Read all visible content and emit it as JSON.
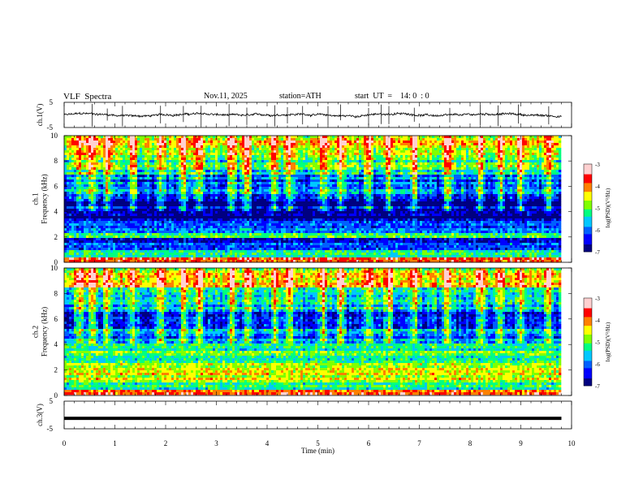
{
  "header": {
    "title": "VLF  Spectra",
    "date": "Nov.11, 2025",
    "station": "station=ATH",
    "start": "start  UT  =    14: 0  : 0"
  },
  "chart_data": [
    {
      "type": "line",
      "name": "ch1_waveform",
      "ylabel": "ch.1(V)",
      "ylim": [
        -5,
        5
      ],
      "yticks": [
        "5",
        "-5"
      ],
      "xlim": [
        0,
        10
      ],
      "x_end": 9.8,
      "baseline": 0.0,
      "noise_amplitude": 0.7,
      "spike_times_min": [
        0.55,
        0.85,
        1.15,
        1.9,
        2.35,
        2.7,
        3.25,
        3.6,
        4.15,
        4.4,
        4.7,
        5.2,
        5.45,
        6.0,
        6.25,
        6.4,
        6.9,
        7.6,
        8.2,
        8.55,
        8.95,
        9.55
      ]
    },
    {
      "type": "heatmap",
      "name": "ch1_spectrogram",
      "ylabel": "ch.1\nFrequency (kHz)",
      "yticks": [
        "0",
        "2",
        "4",
        "6",
        "8",
        "10"
      ],
      "ylim_khz": [
        0,
        10
      ],
      "xlim": [
        0,
        10
      ],
      "x_end": 9.8,
      "colorbar": {
        "label": "log(PSD)(V²/Hz)",
        "ticks": [
          "-3",
          "-4",
          "-5",
          "-6",
          "-7"
        ],
        "range": [
          -7,
          -3
        ]
      },
      "bands_khz": [
        [
          0.0,
          0.3,
          -4.0
        ],
        [
          0.3,
          1.0,
          -5.2
        ],
        [
          1.0,
          2.0,
          -6.2
        ],
        [
          2.0,
          2.4,
          -5.0
        ],
        [
          2.4,
          3.2,
          -6.0
        ],
        [
          3.2,
          5.4,
          -6.7
        ],
        [
          5.4,
          7.0,
          -6.1
        ],
        [
          7.0,
          8.5,
          -5.3
        ],
        [
          8.5,
          10.0,
          -4.5
        ]
      ],
      "burst_times_min": [
        0.3,
        0.55,
        0.85,
        1.35,
        1.9,
        2.35,
        2.65,
        3.3,
        3.6,
        4.15,
        4.45,
        5.1,
        5.45,
        6.0,
        6.4,
        6.9,
        7.55,
        8.2,
        8.6,
        9.0,
        9.55
      ]
    },
    {
      "type": "heatmap",
      "name": "ch2_spectrogram",
      "ylabel": "ch.2\nFrequency (kHz)",
      "yticks": [
        "0",
        "2",
        "4",
        "6",
        "8",
        "10"
      ],
      "ylim_khz": [
        0,
        10
      ],
      "xlim": [
        0,
        10
      ],
      "x_end": 9.8,
      "colorbar": {
        "label": "log(PSD)(V²/Hz)",
        "ticks": [
          "-3",
          "-4",
          "-5",
          "-6",
          "-7"
        ],
        "range": [
          -7,
          -3
        ]
      },
      "bands_khz": [
        [
          0.0,
          0.3,
          -4.0
        ],
        [
          0.3,
          1.2,
          -5.0
        ],
        [
          1.2,
          2.5,
          -4.7
        ],
        [
          2.5,
          4.0,
          -5.1
        ],
        [
          4.0,
          5.2,
          -6.0
        ],
        [
          5.2,
          6.8,
          -6.3
        ],
        [
          6.8,
          8.5,
          -5.6
        ],
        [
          8.5,
          10.0,
          -4.6
        ]
      ],
      "burst_times_min": [
        0.3,
        0.55,
        0.85,
        1.35,
        1.9,
        2.35,
        2.65,
        3.3,
        3.6,
        4.15,
        4.45,
        5.1,
        5.45,
        6.0,
        6.4,
        6.9,
        7.55,
        8.2,
        8.6,
        9.0,
        9.55
      ]
    },
    {
      "type": "line",
      "name": "ch3_waveform",
      "ylabel": "ch.3(V)",
      "ylim": [
        -5,
        5
      ],
      "yticks": [
        "5",
        "-5"
      ],
      "xlim": [
        0,
        10
      ],
      "x_end": 9.8,
      "baseline": -1.2
    }
  ],
  "xaxis": {
    "label": "Time  (min)",
    "ticks": [
      "0",
      "1",
      "2",
      "3",
      "4",
      "5",
      "6",
      "7",
      "8",
      "9",
      "10"
    ]
  },
  "colors": [
    "#000080",
    "#0000ff",
    "#0060ff",
    "#00c8ff",
    "#00ff80",
    "#80ff00",
    "#ffff00",
    "#ff8000",
    "#ff0000",
    "#ffd0d0"
  ]
}
